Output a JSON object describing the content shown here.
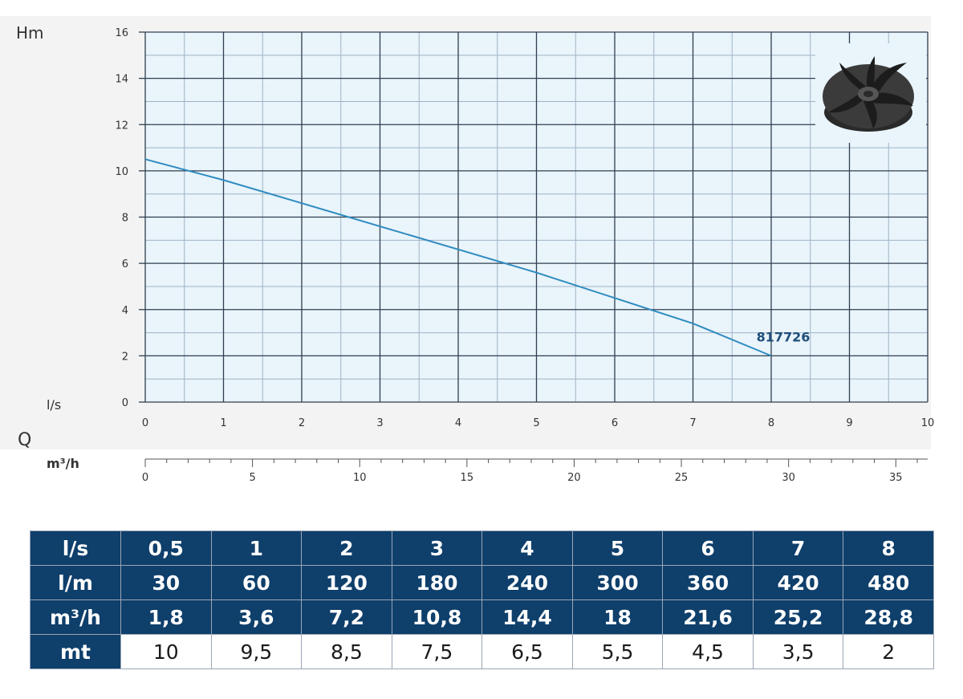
{
  "chart_data": {
    "type": "line",
    "y_axis_title": "Hm",
    "flow_symbol": "Q",
    "x_unit_primary": "l/s",
    "x_unit_secondary": "m³/h",
    "x_ticks": [
      "0",
      "1",
      "2",
      "3",
      "4",
      "5",
      "6",
      "7",
      "8",
      "9",
      "10"
    ],
    "x2_ticks": [
      "0",
      "5",
      "10",
      "15",
      "20",
      "25",
      "30",
      "35"
    ],
    "y_ticks": [
      "0",
      "2",
      "4",
      "6",
      "8",
      "10",
      "12",
      "14",
      "16"
    ],
    "xlim": [
      0,
      10
    ],
    "ylim": [
      0,
      16
    ],
    "x2lim": [
      0,
      36
    ],
    "grid": true,
    "series": [
      {
        "name": "817726",
        "color": "#2e8bc0",
        "x": [
          0,
          1,
          2,
          3,
          4,
          5,
          6,
          7,
          8
        ],
        "y": [
          10.5,
          9.6,
          8.6,
          7.6,
          6.6,
          5.6,
          4.5,
          3.4,
          2.0
        ]
      }
    ],
    "image": "impeller-icon"
  },
  "table": {
    "rows": [
      {
        "label": "l/s",
        "cells": [
          "0,5",
          "1",
          "2",
          "3",
          "4",
          "5",
          "6",
          "7",
          "8"
        ],
        "style": "head"
      },
      {
        "label": "l/m",
        "cells": [
          "30",
          "60",
          "120",
          "180",
          "240",
          "300",
          "360",
          "420",
          "480"
        ],
        "style": "head"
      },
      {
        "label": "m³/h",
        "cells": [
          "1,8",
          "3,6",
          "7,2",
          "10,8",
          "14,4",
          "18",
          "21,6",
          "25,2",
          "28,8"
        ],
        "style": "head"
      },
      {
        "label": "mt",
        "cells": [
          "10",
          "9,5",
          "8,5",
          "7,5",
          "6,5",
          "5,5",
          "4,5",
          "3,5",
          "2"
        ],
        "style": "value"
      }
    ]
  },
  "colors": {
    "plot_background": "#e9f4fb",
    "grid_major": "#2f3f4f",
    "grid_minor": "#9fb3c4",
    "curve": "#2e8bc0",
    "series_label": "#1f4e79",
    "table_header": "#0f3f6b"
  }
}
